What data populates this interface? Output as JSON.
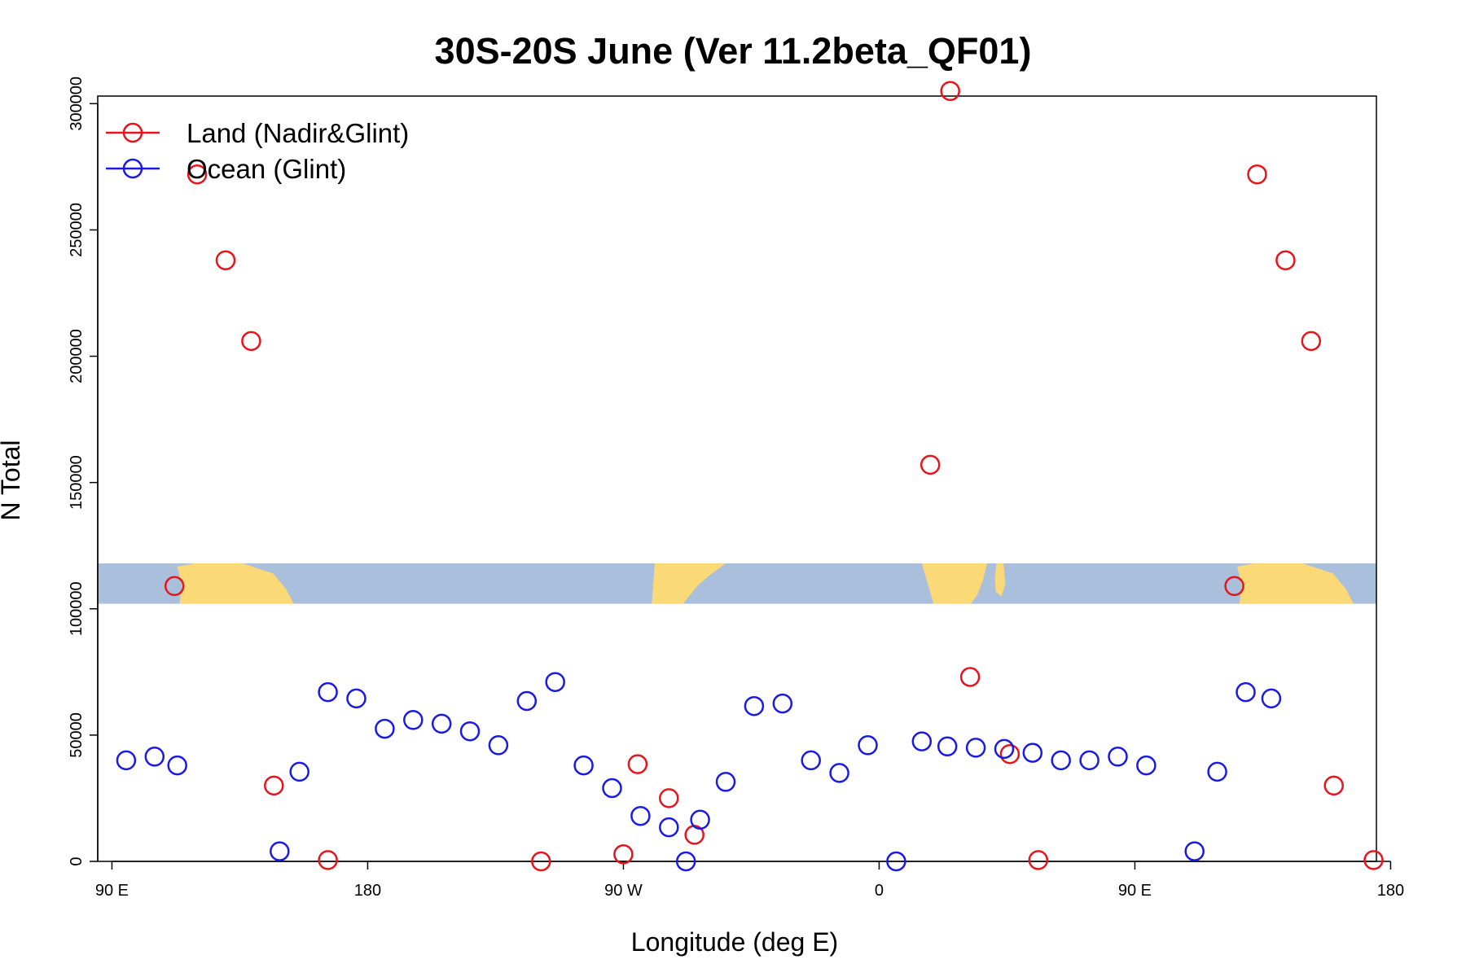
{
  "chart_data": {
    "type": "scatter",
    "title": "30S-20S June (Ver 11.2beta_QF01)",
    "xlabel": "Longitude (deg E)",
    "ylabel": "N Total",
    "xlim": [
      85,
      535
    ],
    "ylim": [
      0,
      303000
    ],
    "x_ticks": [
      {
        "value": 90,
        "label": "90 E"
      },
      {
        "value": 180,
        "label": "180"
      },
      {
        "value": 270,
        "label": "90 W"
      },
      {
        "value": 360,
        "label": "0"
      },
      {
        "value": 450,
        "label": "90 E"
      },
      {
        "value": 540,
        "label": "180"
      }
    ],
    "y_ticks": [
      {
        "value": 0,
        "label": "0"
      },
      {
        "value": 50000,
        "label": "50000"
      },
      {
        "value": 100000,
        "label": "100000"
      },
      {
        "value": 150000,
        "label": "150000"
      },
      {
        "value": 200000,
        "label": "200000"
      },
      {
        "value": 250000,
        "label": "250000"
      },
      {
        "value": 300000,
        "label": "300000"
      }
    ],
    "legend_position": "top-left",
    "map_strip": {
      "ymin": 102000,
      "ymax": 118000,
      "ocean_color": "#a9bfdb",
      "land_color": "#fbd976"
    },
    "series": [
      {
        "name": "Land (Nadir&Glint)",
        "color": "#e8141c",
        "points": [
          {
            "x": 112,
            "y": 109000
          },
          {
            "x": 120,
            "y": 272000
          },
          {
            "x": 130,
            "y": 238000
          },
          {
            "x": 139,
            "y": 206000
          },
          {
            "x": 147,
            "y": 30000
          },
          {
            "x": 166,
            "y": 500
          },
          {
            "x": 241,
            "y": 0
          },
          {
            "x": 270,
            "y": 2800
          },
          {
            "x": 275,
            "y": 38500
          },
          {
            "x": 286,
            "y": 25000
          },
          {
            "x": 295,
            "y": 10500
          },
          {
            "x": 378,
            "y": 157000
          },
          {
            "x": 385,
            "y": 305000
          },
          {
            "x": 392,
            "y": 73000
          },
          {
            "x": 406,
            "y": 42500
          },
          {
            "x": 416,
            "y": 500
          },
          {
            "x": 485,
            "y": 109000
          },
          {
            "x": 493,
            "y": 272000
          },
          {
            "x": 503,
            "y": 238000
          },
          {
            "x": 512,
            "y": 206000
          },
          {
            "x": 520,
            "y": 30000
          },
          {
            "x": 534,
            "y": 500
          }
        ]
      },
      {
        "name": "Ocean (Glint)",
        "color": "#1a1ae6",
        "points": [
          {
            "x": 95,
            "y": 40000
          },
          {
            "x": 105,
            "y": 41500
          },
          {
            "x": 113,
            "y": 38000
          },
          {
            "x": 149,
            "y": 4000
          },
          {
            "x": 156,
            "y": 35500
          },
          {
            "x": 166,
            "y": 67000
          },
          {
            "x": 176,
            "y": 64500
          },
          {
            "x": 186,
            "y": 52500
          },
          {
            "x": 196,
            "y": 56000
          },
          {
            "x": 206,
            "y": 54500
          },
          {
            "x": 216,
            "y": 51500
          },
          {
            "x": 226,
            "y": 46000
          },
          {
            "x": 236,
            "y": 63500
          },
          {
            "x": 246,
            "y": 71000
          },
          {
            "x": 256,
            "y": 38000
          },
          {
            "x": 266,
            "y": 29000
          },
          {
            "x": 276,
            "y": 18000
          },
          {
            "x": 286,
            "y": 13500
          },
          {
            "x": 292,
            "y": 0
          },
          {
            "x": 297,
            "y": 16500
          },
          {
            "x": 306,
            "y": 31500
          },
          {
            "x": 316,
            "y": 61500
          },
          {
            "x": 326,
            "y": 62500
          },
          {
            "x": 336,
            "y": 40000
          },
          {
            "x": 346,
            "y": 35000
          },
          {
            "x": 356,
            "y": 46000
          },
          {
            "x": 366,
            "y": 0
          },
          {
            "x": 375,
            "y": 47500
          },
          {
            "x": 384,
            "y": 45500
          },
          {
            "x": 394,
            "y": 45000
          },
          {
            "x": 404,
            "y": 44500
          },
          {
            "x": 414,
            "y": 43000
          },
          {
            "x": 424,
            "y": 40000
          },
          {
            "x": 434,
            "y": 40000
          },
          {
            "x": 444,
            "y": 41500
          },
          {
            "x": 454,
            "y": 38000
          },
          {
            "x": 471,
            "y": 4000
          },
          {
            "x": 479,
            "y": 35500
          },
          {
            "x": 489,
            "y": 67000
          },
          {
            "x": 498,
            "y": 64500
          }
        ]
      }
    ]
  }
}
